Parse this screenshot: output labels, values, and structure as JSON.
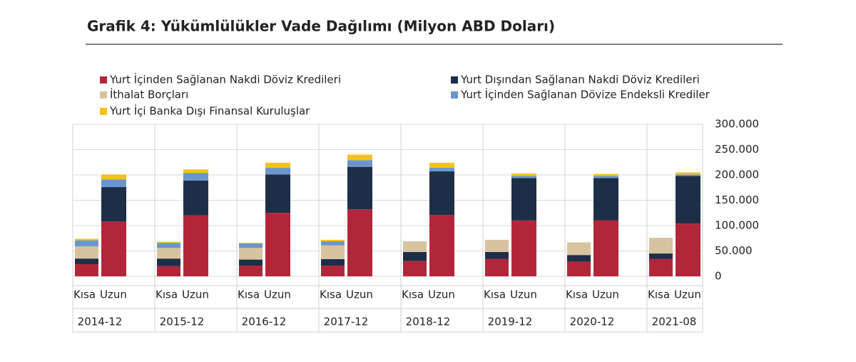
{
  "chart_data": {
    "type": "stacked-bar",
    "title": "Grafik 4:   Yükümlülükler Vade Dağılımı (Milyon ABD Doları)",
    "categories": [
      "Kısa",
      "Uzun",
      "Kısa",
      "Uzun",
      "Kısa",
      "Uzun",
      "Kısa",
      "Uzun",
      "Kısa",
      "Uzun",
      "Kısa",
      "Uzun",
      "Kısa",
      "Uzun",
      "Kısa",
      "Uzun"
    ],
    "groups": [
      "2014-12",
      "2015-12",
      "2016-12",
      "2017-12",
      "2018-12",
      "2019-12",
      "2020-12",
      "2021-08"
    ],
    "series": [
      {
        "name": "Yurt İçinden Sağlanan Nakdi Döviz Kredileri",
        "color": "#b3263a",
        "values": [
          24000,
          108000,
          20000,
          120000,
          21000,
          125000,
          21000,
          132000,
          30000,
          121000,
          34000,
          110000,
          29000,
          110000,
          34000,
          104000
        ]
      },
      {
        "name": "Yurt Dışından Sağlanan Nakdi Döviz Kredileri",
        "color": "#1d2f47",
        "values": [
          11000,
          68000,
          15000,
          69000,
          12000,
          76000,
          13000,
          84000,
          18000,
          86000,
          14000,
          84000,
          13000,
          84000,
          11000,
          94000
        ]
      },
      {
        "name": "İthalat Borçları",
        "color": "#d8c3a0",
        "values": [
          24000,
          0,
          21000,
          0,
          23000,
          0,
          27000,
          0,
          21000,
          0,
          24000,
          0,
          25000,
          0,
          31000,
          0
        ]
      },
      {
        "name": "Yurt İçinden Sağlanan Dövize Endeksli Krediler",
        "color": "#6b96cc",
        "values": [
          12000,
          15000,
          10000,
          15000,
          9000,
          13000,
          8000,
          13000,
          0,
          7000,
          0,
          4000,
          0,
          4000,
          0,
          3000
        ]
      },
      {
        "name": "Yurt İçi Banka Dışı Finansal Kuruluşlar",
        "color": "#f4c21c",
        "values": [
          3000,
          10000,
          2000,
          7000,
          1000,
          10000,
          3000,
          11000,
          0,
          10000,
          0,
          5000,
          0,
          4000,
          0,
          4000
        ]
      }
    ],
    "ylim": [
      0,
      300000
    ],
    "yticks": [
      {
        "value": 0,
        "label": "0"
      },
      {
        "value": 50000,
        "label": "50.000"
      },
      {
        "value": 100000,
        "label": "100.000"
      },
      {
        "value": 150000,
        "label": "150.000"
      },
      {
        "value": 200000,
        "label": "200.000"
      },
      {
        "value": 250000,
        "label": "250.000"
      },
      {
        "value": 300000,
        "label": "300.000"
      }
    ],
    "grid": true
  }
}
